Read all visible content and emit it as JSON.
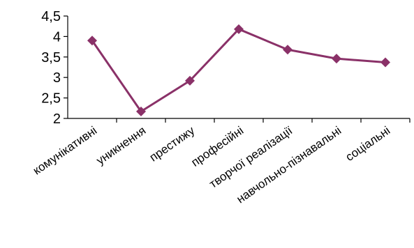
{
  "chart_data": {
    "type": "line",
    "categories": [
      "комунікативні",
      "уникнення",
      "престижу",
      "професійні",
      "творчої реалізації",
      "навчольно-пізнавальні",
      "соціальні"
    ],
    "series": [
      {
        "values": [
          3.9,
          2.17,
          2.92,
          4.18,
          3.68,
          3.46,
          3.37
        ]
      }
    ],
    "ylim": [
      2,
      4.5
    ],
    "yticks": [
      "2",
      "2,5",
      "3",
      "3,5",
      "4",
      "4,5"
    ],
    "title": "",
    "xlabel": "",
    "ylabel": "",
    "grid": false,
    "legend": "none",
    "colors": {
      "line": "#8a3168",
      "axis": "#000000"
    }
  }
}
